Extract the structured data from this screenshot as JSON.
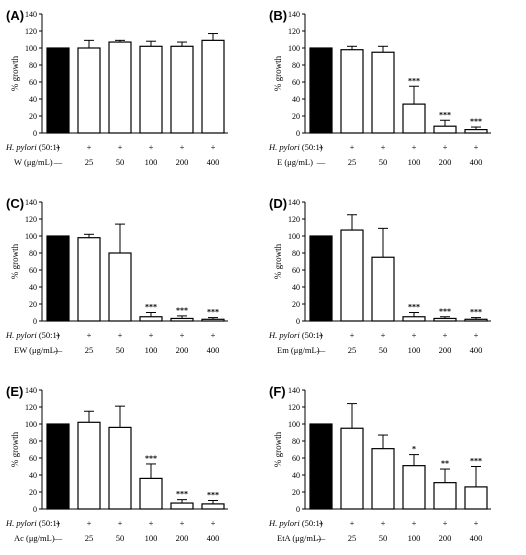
{
  "chart_data": [
    {
      "type": "bar",
      "panel_label": "(A)",
      "ylabel": "% growth",
      "ylim": [
        0,
        140
      ],
      "yticks": [
        "0",
        "20",
        "40",
        "60",
        "80",
        "100",
        "120",
        "140"
      ],
      "row1_label": {
        "italic": "H. pylori",
        "normal": " (50:1)"
      },
      "row2_label": "W (μg/mL)",
      "row1_values": [
        "+",
        "+",
        "+",
        "+",
        "+",
        "+"
      ],
      "row2_values": [
        "—",
        "25",
        "50",
        "100",
        "200",
        "400"
      ],
      "values": [
        100,
        100,
        107,
        102,
        102,
        109
      ],
      "errors": [
        0,
        9,
        2,
        6,
        5,
        8
      ],
      "significance": [
        "",
        "",
        "",
        "",
        "",
        ""
      ],
      "bar_fill": [
        "#000000",
        "#ffffff",
        "#ffffff",
        "#ffffff",
        "#ffffff",
        "#ffffff"
      ]
    },
    {
      "type": "bar",
      "panel_label": "(B)",
      "ylabel": "% growth",
      "ylim": [
        0,
        140
      ],
      "yticks": [
        "0",
        "20",
        "40",
        "60",
        "80",
        "100",
        "120",
        "140"
      ],
      "row1_label": {
        "italic": "H. pylori",
        "normal": " (50:1)"
      },
      "row2_label": "E (μg/mL)",
      "row1_values": [
        "+",
        "+",
        "+",
        "+",
        "+",
        "+"
      ],
      "row2_values": [
        "—",
        "25",
        "50",
        "100",
        "200",
        "400"
      ],
      "values": [
        100,
        98,
        95,
        34,
        8,
        4
      ],
      "errors": [
        0,
        4,
        7,
        21,
        7,
        3
      ],
      "significance": [
        "",
        "",
        "",
        "***",
        "***",
        "***"
      ],
      "bar_fill": [
        "#000000",
        "#ffffff",
        "#ffffff",
        "#ffffff",
        "#ffffff",
        "#ffffff"
      ]
    },
    {
      "type": "bar",
      "panel_label": "(C)",
      "ylabel": "% growth",
      "ylim": [
        0,
        140
      ],
      "yticks": [
        "0",
        "20",
        "40",
        "60",
        "80",
        "100",
        "120",
        "140"
      ],
      "row1_label": {
        "italic": "H. pylori",
        "normal": " (50:1)"
      },
      "row2_label": "EW (μg/mL)",
      "row1_values": [
        "+",
        "+",
        "+",
        "+",
        "+",
        "+"
      ],
      "row2_values": [
        "—",
        "25",
        "50",
        "100",
        "200",
        "400"
      ],
      "values": [
        100,
        98,
        80,
        5,
        3,
        2
      ],
      "errors": [
        0,
        4,
        34,
        5,
        3,
        2
      ],
      "significance": [
        "",
        "",
        "",
        "***",
        "***",
        "***"
      ],
      "bar_fill": [
        "#000000",
        "#ffffff",
        "#ffffff",
        "#ffffff",
        "#ffffff",
        "#ffffff"
      ]
    },
    {
      "type": "bar",
      "panel_label": "(D)",
      "ylabel": "% growth",
      "ylim": [
        0,
        140
      ],
      "yticks": [
        "0",
        "20",
        "40",
        "60",
        "80",
        "100",
        "120",
        "140"
      ],
      "row1_label": {
        "italic": "H. pylori",
        "normal": " (50:1)"
      },
      "row2_label": "Em (μg/mL)",
      "row1_values": [
        "+",
        "+",
        "+",
        "+",
        "+",
        "+"
      ],
      "row2_values": [
        "—",
        "25",
        "50",
        "100",
        "200",
        "400"
      ],
      "values": [
        100,
        107,
        75,
        5,
        3,
        2
      ],
      "errors": [
        0,
        18,
        34,
        5,
        2,
        2
      ],
      "significance": [
        "",
        "",
        "",
        "***",
        "***",
        "***"
      ],
      "bar_fill": [
        "#000000",
        "#ffffff",
        "#ffffff",
        "#ffffff",
        "#ffffff",
        "#ffffff"
      ]
    },
    {
      "type": "bar",
      "panel_label": "(E)",
      "ylabel": "% growth",
      "ylim": [
        0,
        140
      ],
      "yticks": [
        "0",
        "20",
        "40",
        "60",
        "80",
        "100",
        "120",
        "140"
      ],
      "row1_label": {
        "italic": "H. pylori",
        "normal": " (50:1)"
      },
      "row2_label": "Ac (μg/mL)",
      "row1_values": [
        "+",
        "+",
        "+",
        "+",
        "+",
        "+"
      ],
      "row2_values": [
        "—",
        "25",
        "50",
        "100",
        "200",
        "400"
      ],
      "values": [
        100,
        102,
        96,
        36,
        7,
        6
      ],
      "errors": [
        0,
        13,
        25,
        17,
        4,
        4
      ],
      "significance": [
        "",
        "",
        "",
        "***",
        "***",
        "***"
      ],
      "bar_fill": [
        "#000000",
        "#ffffff",
        "#ffffff",
        "#ffffff",
        "#ffffff",
        "#ffffff"
      ]
    },
    {
      "type": "bar",
      "panel_label": "(F)",
      "ylabel": "% growth",
      "ylim": [
        0,
        140
      ],
      "yticks": [
        "0",
        "20",
        "40",
        "60",
        "80",
        "100",
        "120",
        "140"
      ],
      "row1_label": {
        "italic": "H. pylori",
        "normal": " (50:1)"
      },
      "row2_label": "EtA (μg/mL)",
      "row1_values": [
        "+",
        "+",
        "+",
        "+",
        "+",
        "+"
      ],
      "row2_values": [
        "—",
        "25",
        "50",
        "100",
        "200",
        "400"
      ],
      "values": [
        100,
        95,
        71,
        51,
        31,
        26
      ],
      "errors": [
        0,
        29,
        16,
        13,
        16,
        24
      ],
      "significance": [
        "",
        "",
        "",
        "*",
        "**",
        "***"
      ],
      "bar_fill": [
        "#000000",
        "#ffffff",
        "#ffffff",
        "#ffffff",
        "#ffffff",
        "#ffffff"
      ]
    }
  ]
}
